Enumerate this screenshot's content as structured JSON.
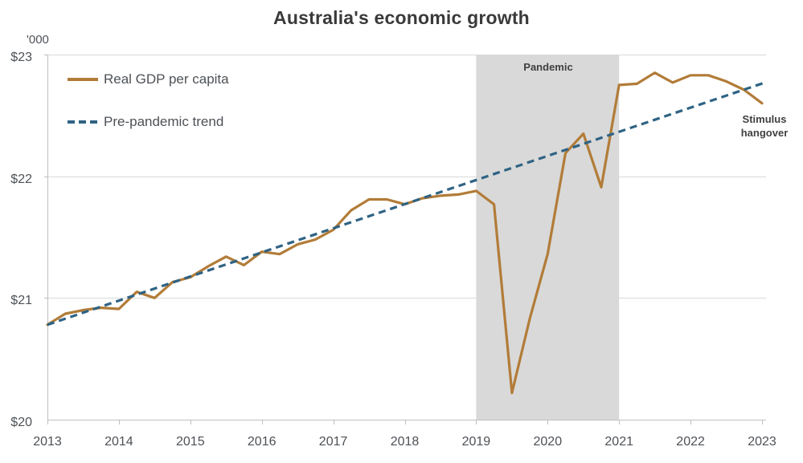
{
  "title": "Australia's economic growth",
  "y_axis_unit": "'000",
  "legend": [
    {
      "label": "Real GDP per capita",
      "style": "solid",
      "color": "#b27c38"
    },
    {
      "label": "Pre-pandemic trend",
      "style": "dashed",
      "color": "#2f6384"
    }
  ],
  "annotations": {
    "pandemic_label": "Pandemic",
    "stimulus_label": "Stimulus hangover"
  },
  "colors": {
    "gdp_line": "#b27c38",
    "trend_line": "#2f6384",
    "pandemic_band": "#d9d9d9",
    "gridline": "#d9d9d9",
    "axis_line": "#bfbfbf",
    "tick_text": "#4d5156",
    "annotation_text": "#404040",
    "title_text": "#3a3a3a"
  },
  "chart_data": {
    "type": "line",
    "title": "Australia's economic growth",
    "y_unit": "'000",
    "xlabel": "",
    "ylabel": "'000 dollars",
    "xlim": [
      2013,
      2023.05
    ],
    "ylim": [
      20,
      23
    ],
    "grid": "horizontal",
    "legend_position": "top-left-inside",
    "x_ticks": [
      "2013",
      "2014",
      "2015",
      "2016",
      "2017",
      "2018",
      "2019",
      "2020",
      "2021",
      "2022",
      "2023"
    ],
    "x_tick_values": [
      2013,
      2014,
      2015,
      2016,
      2017,
      2018,
      2019,
      2020,
      2021,
      2022,
      2023
    ],
    "y_ticks": [
      "$20",
      "$21",
      "$22",
      "$23"
    ],
    "y_tick_values": [
      20,
      21,
      22,
      23
    ],
    "shaded_region": {
      "label": "Pandemic",
      "x_start": 2019,
      "x_end": 2021,
      "color": "#d9d9d9"
    },
    "series": [
      {
        "name": "Real GDP per capita",
        "style": "solid",
        "color": "#b27c38",
        "x": [
          2013,
          2013.25,
          2013.5,
          2013.75,
          2014,
          2014.25,
          2014.5,
          2014.75,
          2015,
          2015.25,
          2015.5,
          2015.75,
          2016,
          2016.25,
          2016.5,
          2016.75,
          2017,
          2017.25,
          2017.5,
          2017.75,
          2018,
          2018.25,
          2018.5,
          2018.75,
          2019,
          2019.25,
          2019.5,
          2019.75,
          2020,
          2020.25,
          2020.5,
          2020.75,
          2021,
          2021.25,
          2021.5,
          2021.75,
          2022,
          2022.25,
          2022.5,
          2022.75,
          2023
        ],
        "values": [
          20.78,
          20.87,
          20.9,
          20.92,
          20.91,
          21.05,
          21.0,
          21.13,
          21.17,
          21.26,
          21.34,
          21.27,
          21.38,
          21.36,
          21.44,
          21.48,
          21.56,
          21.72,
          21.81,
          21.81,
          21.77,
          21.82,
          21.84,
          21.85,
          21.88,
          21.77,
          20.22,
          20.83,
          21.36,
          22.19,
          22.35,
          21.91,
          22.75,
          22.76,
          22.85,
          22.77,
          22.83,
          22.83,
          22.78,
          22.71,
          22.6
        ]
      },
      {
        "name": "Pre-pandemic trend",
        "style": "dashed",
        "color": "#2f6384",
        "x": [
          2013,
          2023.04
        ],
        "values": [
          20.78,
          22.77
        ]
      }
    ],
    "annotations": [
      {
        "text": "Pandemic",
        "x": 2020,
        "y": 22.9
      },
      {
        "text": "Stimulus hangover",
        "x": 2023,
        "y": 22.45
      }
    ]
  }
}
